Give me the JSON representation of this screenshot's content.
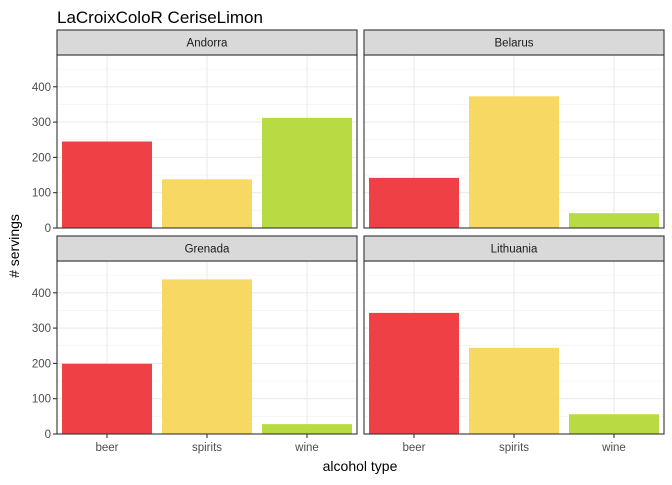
{
  "chart_data": {
    "type": "bar",
    "title": "LaCroixColoR CeriseLimon",
    "xlabel": "alcohol type",
    "ylabel": "# servings",
    "categories": [
      "beer",
      "spirits",
      "wine"
    ],
    "colors": {
      "beer": "#ef4046",
      "spirits": "#f7d862",
      "wine": "#b8db43"
    },
    "ylim": [
      0,
      490
    ],
    "yticks": [
      0,
      100,
      200,
      300,
      400
    ],
    "grid": true,
    "legend": "none",
    "facets": [
      {
        "name": "Andorra",
        "values": [
          245,
          138,
          312
        ]
      },
      {
        "name": "Belarus",
        "values": [
          142,
          373,
          42
        ]
      },
      {
        "name": "Grenada",
        "values": [
          199,
          438,
          28
        ]
      },
      {
        "name": "Lithuania",
        "values": [
          343,
          244,
          56
        ]
      }
    ]
  }
}
